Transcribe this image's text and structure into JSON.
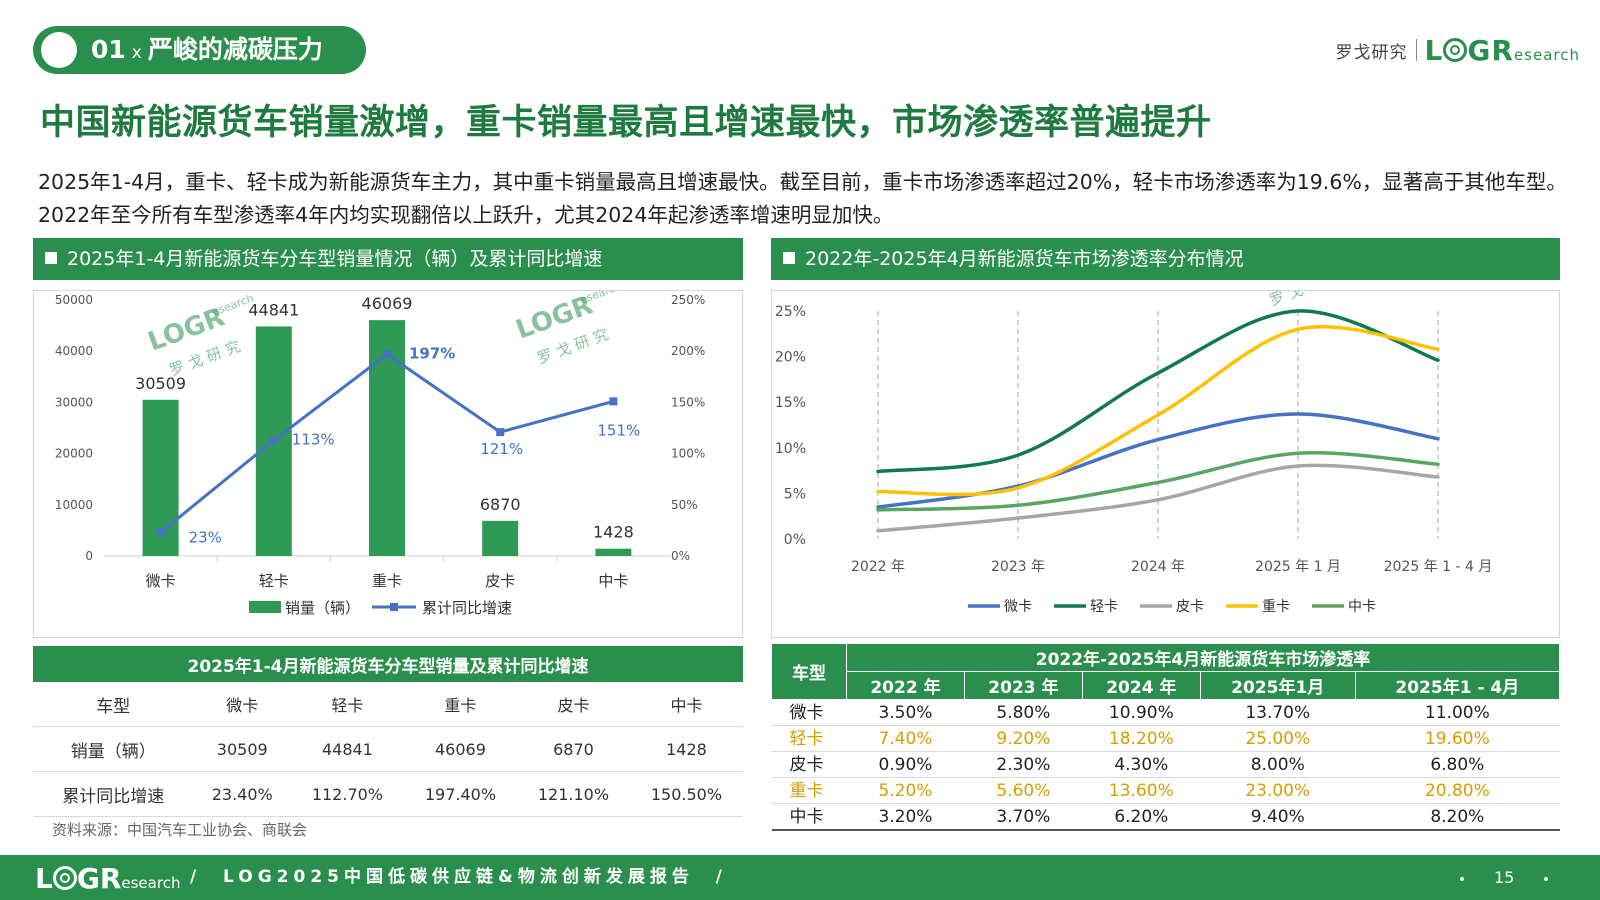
{
  "section": {
    "number": "01",
    "separator": "x",
    "title": "严峻的减碳压力"
  },
  "logo": {
    "cn": "罗戈研究",
    "mark_l": "L",
    "mark_gr": "GR",
    "mark_research": "esearch"
  },
  "headline": "中国新能源货车销量激增，重卡销量最高且增速最快，市场渗透率普遍提升",
  "intro": "2025年1-4月，重卡、轻卡成为新能源货车主力，其中重卡销量最高且增速最快。截至目前，重卡市场渗透率超过20%，轻卡市场渗透率为19.6%，显著高于其他车型。2022年至今所有车型渗透率4年内均实现翻倍以上跃升，尤其2024年起渗透率增速明显加快。",
  "watermark": {
    "mark": "LOGR",
    "research": "esearch",
    "cn": "罗 戈 研 究"
  },
  "left_panel": {
    "title": "2025年1-4月新能源货车分车型销量情况（辆）及累计同比增速"
  },
  "right_panel": {
    "title": "2022年-2025年4月新能源货车市场渗透率分布情况"
  },
  "chart_data": [
    {
      "type": "bar",
      "categories": [
        "微卡",
        "轻卡",
        "重卡",
        "皮卡",
        "中卡"
      ],
      "series": [
        {
          "name": "销量（辆）",
          "kind": "bar",
          "axis": "left",
          "values": [
            30509,
            44841,
            46069,
            6870,
            1428
          ],
          "labels": [
            "30509",
            "44841",
            "46069",
            "6870",
            "1428"
          ],
          "color": "#2e9a55"
        },
        {
          "name": "累计同比增速",
          "kind": "line",
          "axis": "right",
          "values": [
            23,
            113,
            197,
            121,
            151
          ],
          "labels": [
            "23%",
            "113%",
            "197%",
            "121%",
            "151%"
          ],
          "color": "#4472c4"
        }
      ],
      "y_left": {
        "range": [
          0,
          50000
        ],
        "ticks": [
          "0",
          "10000",
          "20000",
          "30000",
          "40000",
          "50000"
        ]
      },
      "y_right": {
        "range": [
          0,
          250
        ],
        "ticks": [
          "0%",
          "50%",
          "100%",
          "150%",
          "200%",
          "250%"
        ]
      },
      "grid": false,
      "legend": "bottom"
    },
    {
      "type": "line",
      "x": [
        "2022 年",
        "2023 年",
        "2024 年",
        "2025 年 1 月",
        "2025 年 1 - 4 月"
      ],
      "series": [
        {
          "name": "微卡",
          "values": [
            3.5,
            5.8,
            10.9,
            13.7,
            11.0
          ],
          "color": "#4472c4"
        },
        {
          "name": "轻卡",
          "values": [
            7.4,
            9.2,
            18.2,
            25.0,
            19.6
          ],
          "color": "#0f7a4a"
        },
        {
          "name": "皮卡",
          "values": [
            0.9,
            2.3,
            4.3,
            8.0,
            6.8
          ],
          "color": "#a6a6a6"
        },
        {
          "name": "重卡",
          "values": [
            5.2,
            5.6,
            13.6,
            23.0,
            20.8
          ],
          "color": "#ffc000"
        },
        {
          "name": "中卡",
          "values": [
            3.2,
            3.7,
            6.2,
            9.4,
            8.2
          ],
          "color": "#5aa564"
        }
      ],
      "y": {
        "range": [
          0,
          25
        ],
        "ticks": [
          "0%",
          "5%",
          "10%",
          "15%",
          "20%",
          "25%"
        ]
      },
      "grid": false,
      "legend": "bottom"
    }
  ],
  "sales_table": {
    "title": "2025年1-4月新能源货车分车型销量及累计同比增速",
    "header": [
      "车型",
      "微卡",
      "轻卡",
      "重卡",
      "皮卡",
      "中卡"
    ],
    "rows": [
      [
        "销量（辆）",
        "30509",
        "44841",
        "46069",
        "6870",
        "1428"
      ],
      [
        "累计同比增速",
        "23.40%",
        "112.70%",
        "197.40%",
        "121.10%",
        "150.50%"
      ]
    ]
  },
  "penetration_table": {
    "row_header": "车型",
    "title": "2022年-2025年4月新能源货车市场渗透率",
    "columns": [
      "2022 年",
      "2023 年",
      "2024 年",
      "2025年1月",
      "2025年1 - 4月"
    ],
    "rows": [
      {
        "type": "微卡",
        "values": [
          "3.50%",
          "5.80%",
          "10.90%",
          "13.70%",
          "11.00%"
        ]
      },
      {
        "type": "轻卡",
        "values": [
          "7.40%",
          "9.20%",
          "18.20%",
          "25.00%",
          "19.60%"
        ]
      },
      {
        "type": "皮卡",
        "values": [
          "0.90%",
          "2.30%",
          "4.30%",
          "8.00%",
          "6.80%"
        ]
      },
      {
        "type": "重卡",
        "values": [
          "5.20%",
          "5.60%",
          "13.60%",
          "23.00%",
          "20.80%"
        ]
      },
      {
        "type": "中卡",
        "values": [
          "3.20%",
          "3.70%",
          "6.20%",
          "9.40%",
          "8.20%"
        ]
      }
    ]
  },
  "source": "资料来源：中国汽车工业协会、商联会",
  "footer": {
    "text": "LOG2025中国低碳供应链&物流创新发展报告",
    "page": "15"
  }
}
